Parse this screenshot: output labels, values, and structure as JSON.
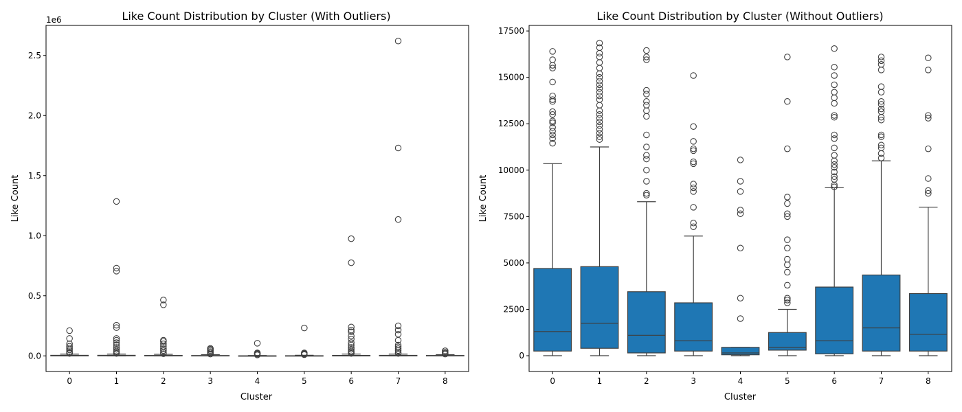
{
  "chart_data": [
    {
      "type": "box",
      "title": "Like Count Distribution by Cluster (With Outliers)",
      "xlabel": "Cluster",
      "ylabel": "Like Count",
      "offset_label": "1e6",
      "categories": [
        "0",
        "1",
        "2",
        "3",
        "4",
        "5",
        "6",
        "7",
        "8"
      ],
      "ylim": [
        -130000,
        2750000
      ],
      "y_ticks": [
        0,
        500000,
        1000000,
        1500000,
        2000000,
        2500000
      ],
      "y_tick_labels": [
        "0.0",
        "0.5",
        "1.0",
        "1.5",
        "2.0",
        "2.5"
      ],
      "box_color": "#1f77b4",
      "grid": false,
      "boxes": [
        {
          "q1": 250,
          "median": 1300,
          "q3": 4700,
          "whisker_low": 0,
          "whisker_high": 15000,
          "outliers": [
            20000,
            25000,
            35000,
            50000,
            65000,
            80000,
            100000,
            145000,
            210000
          ]
        },
        {
          "q1": 400,
          "median": 1700,
          "q3": 4800,
          "whisker_low": 0,
          "whisker_high": 15000,
          "outliers": [
            20000,
            30000,
            40000,
            55000,
            70000,
            90000,
            110000,
            130000,
            145000,
            235000,
            255000,
            705000,
            730000,
            1285000
          ]
        },
        {
          "q1": 150,
          "median": 1100,
          "q3": 3500,
          "whisker_low": 0,
          "whisker_high": 13000,
          "outliers": [
            18000,
            30000,
            45000,
            60000,
            80000,
            100000,
            120000,
            130000,
            425000,
            465000
          ]
        },
        {
          "q1": 250,
          "median": 800,
          "q3": 2800,
          "whisker_low": 0,
          "whisker_high": 10000,
          "outliers": [
            15000,
            25000,
            35000,
            45000,
            55000,
            62000
          ]
        },
        {
          "q1": 50,
          "median": 150,
          "q3": 450,
          "whisker_low": 0,
          "whisker_high": 3000,
          "outliers": [
            8000,
            15000,
            20000,
            25000,
            105000
          ]
        },
        {
          "q1": 300,
          "median": 450,
          "q3": 1250,
          "whisker_low": 0,
          "whisker_high": 5000,
          "outliers": [
            10000,
            15000,
            20000,
            25000,
            232000
          ]
        },
        {
          "q1": 100,
          "median": 800,
          "q3": 3700,
          "whisker_low": 0,
          "whisker_high": 15000,
          "outliers": [
            20000,
            30000,
            40000,
            55000,
            70000,
            90000,
            110000,
            140000,
            165000,
            200000,
            215000,
            240000,
            775000,
            975000
          ]
        },
        {
          "q1": 250,
          "median": 1500,
          "q3": 4400,
          "whisker_low": 0,
          "whisker_high": 15000,
          "outliers": [
            20000,
            30000,
            45000,
            60000,
            75000,
            90000,
            130000,
            180000,
            215000,
            250000,
            1135000,
            1730000,
            2620000
          ]
        },
        {
          "q1": 250,
          "median": 1100,
          "q3": 3300,
          "whisker_low": 0,
          "whisker_high": 10000,
          "outliers": [
            15000,
            22000,
            30000,
            42000
          ]
        }
      ]
    },
    {
      "type": "box",
      "title": "Like Count Distribution by Cluster (Without Outliers)",
      "xlabel": "Cluster",
      "ylabel": "Like Count",
      "categories": [
        "0",
        "1",
        "2",
        "3",
        "4",
        "5",
        "6",
        "7",
        "8"
      ],
      "ylim": [
        -850,
        17800
      ],
      "y_ticks": [
        0,
        2500,
        5000,
        7500,
        10000,
        12500,
        15000,
        17500
      ],
      "y_tick_labels": [
        "0",
        "2500",
        "5000",
        "7500",
        "10000",
        "12500",
        "15000",
        "17500"
      ],
      "box_color": "#1f77b4",
      "grid": false,
      "boxes": [
        {
          "q1": 250,
          "median": 1300,
          "q3": 4700,
          "whisker_low": 0,
          "whisker_high": 10350,
          "outliers": [
            11450,
            11700,
            11900,
            12100,
            12300,
            12550,
            12650,
            13000,
            13150,
            13700,
            13800,
            14000,
            14750,
            15500,
            15650,
            15950,
            16400
          ]
        },
        {
          "q1": 400,
          "median": 1750,
          "q3": 4800,
          "whisker_low": 0,
          "whisker_high": 11250,
          "outliers": [
            11650,
            11800,
            12000,
            12200,
            12400,
            12600,
            12800,
            13000,
            13200,
            13500,
            13800,
            14000,
            14200,
            14400,
            14600,
            14800,
            15000,
            15200,
            15500,
            15800,
            16100,
            16300,
            16600,
            16850
          ]
        },
        {
          "q1": 150,
          "median": 1100,
          "q3": 3450,
          "whisker_low": 0,
          "whisker_high": 8300,
          "outliers": [
            8650,
            8750,
            9400,
            10000,
            10600,
            10800,
            11250,
            11900,
            12900,
            13200,
            13500,
            13700,
            14100,
            14300,
            15950,
            16100,
            16450
          ]
        },
        {
          "q1": 250,
          "median": 800,
          "q3": 2850,
          "whisker_low": 0,
          "whisker_high": 6450,
          "outliers": [
            6950,
            7150,
            8000,
            8850,
            9050,
            9250,
            10350,
            10450,
            11050,
            11150,
            11550,
            12350,
            15100
          ]
        },
        {
          "q1": 50,
          "median": 150,
          "q3": 450,
          "whisker_low": 0,
          "whisker_high": 450,
          "outliers": [
            2000,
            3100,
            5800,
            7650,
            7850,
            8850,
            9400,
            10550
          ]
        },
        {
          "q1": 300,
          "median": 450,
          "q3": 1250,
          "whisker_low": 0,
          "whisker_high": 2500,
          "outliers": [
            2850,
            3000,
            3100,
            3800,
            4500,
            4900,
            5200,
            5800,
            6250,
            7500,
            7650,
            8200,
            8550,
            11150,
            13700,
            16100
          ]
        },
        {
          "q1": 100,
          "median": 800,
          "q3": 3700,
          "whisker_low": 0,
          "whisker_high": 9050,
          "outliers": [
            9100,
            9200,
            9500,
            9650,
            9900,
            10150,
            10300,
            10500,
            10800,
            11200,
            11700,
            11900,
            12850,
            12950,
            13600,
            13900,
            14200,
            14600,
            15100,
            15550,
            16550
          ]
        },
        {
          "q1": 250,
          "median": 1500,
          "q3": 4350,
          "whisker_low": 0,
          "whisker_high": 10500,
          "outliers": [
            10650,
            10900,
            11200,
            11350,
            11800,
            11900,
            12700,
            12850,
            13150,
            13300,
            13550,
            13700,
            14200,
            14500,
            15400,
            15700,
            15900,
            16100
          ]
        },
        {
          "q1": 250,
          "median": 1150,
          "q3": 3350,
          "whisker_low": 0,
          "whisker_high": 8000,
          "outliers": [
            8750,
            8900,
            9550,
            11150,
            12800,
            12950,
            15400,
            16050
          ]
        }
      ]
    }
  ]
}
